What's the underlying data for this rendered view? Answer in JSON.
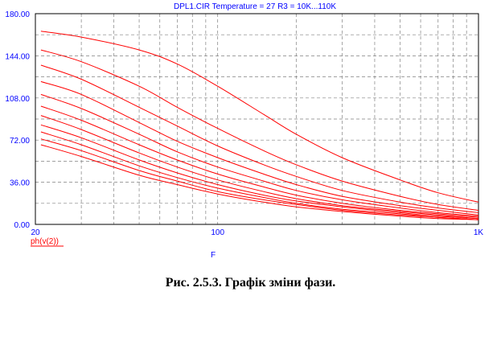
{
  "colors": {
    "curve": "#ff0000",
    "axis_text": "#0000ff",
    "frame": "#000000",
    "grid": "#808080",
    "legend": "#ff0000"
  },
  "caption": "Рис. 2.5.3. Графік зміни фази.",
  "chart_data": {
    "type": "line",
    "title": "DPL1.CIR Temperature = 27 R3 = 10K...110K",
    "xlabel": "F",
    "ylabel": "",
    "xscale": "log",
    "xlim": [
      20,
      1000
    ],
    "ylim": [
      0,
      180
    ],
    "x_ticks": [
      {
        "value": 20,
        "label": "20"
      },
      {
        "value": 100,
        "label": "100"
      },
      {
        "value": 1000,
        "label": "1K"
      }
    ],
    "y_ticks": [
      {
        "value": 0,
        "label": "0.00"
      },
      {
        "value": 36,
        "label": "36.00"
      },
      {
        "value": 72,
        "label": "72.00"
      },
      {
        "value": 108,
        "label": "108.00"
      },
      {
        "value": 144,
        "label": "144.00"
      },
      {
        "value": 180,
        "label": "180.00"
      }
    ],
    "grid": true,
    "legend": {
      "position": "bottom-left",
      "entry": "ph(v(2))"
    },
    "x": [
      21,
      30,
      50,
      70,
      100,
      150,
      200,
      300,
      500,
      700,
      1000
    ],
    "series": [
      {
        "values": [
          165,
          160,
          149,
          137,
          118,
          94,
          77,
          57,
          38,
          27,
          19
        ]
      },
      {
        "values": [
          149,
          139,
          118,
          100,
          82,
          63,
          51,
          37,
          24,
          17,
          12
        ]
      },
      {
        "values": [
          136,
          124,
          100,
          84,
          67,
          51,
          41,
          29,
          19,
          14,
          10
        ]
      },
      {
        "values": [
          122,
          111,
          87,
          71,
          57,
          43,
          34,
          24,
          16,
          12,
          8
        ]
      },
      {
        "values": [
          111,
          99,
          77,
          62,
          49,
          37,
          29,
          21,
          14,
          10,
          7
        ]
      },
      {
        "values": [
          101,
          89,
          68,
          55,
          43,
          32,
          25,
          18,
          12,
          9,
          6
        ]
      },
      {
        "values": [
          93,
          81,
          61,
          49,
          38,
          28,
          22,
          16,
          11,
          8,
          5
        ]
      },
      {
        "values": [
          85,
          74,
          55,
          44,
          34,
          25,
          20,
          15,
          10,
          7,
          5
        ]
      },
      {
        "values": [
          79,
          68,
          50,
          40,
          31,
          23,
          18,
          13,
          9,
          6,
          4
        ]
      },
      {
        "values": [
          73,
          63,
          46,
          37,
          28,
          21,
          17,
          12,
          8,
          6,
          4
        ]
      },
      {
        "values": [
          68,
          58,
          42,
          34,
          26,
          19,
          15,
          11,
          7,
          5,
          4
        ]
      }
    ]
  }
}
